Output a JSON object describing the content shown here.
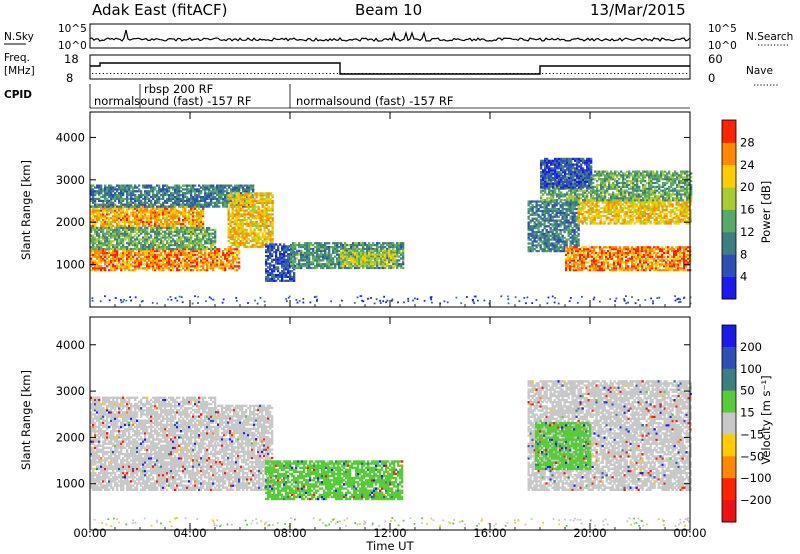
{
  "header": {
    "station": "Adak East (fitACF)",
    "beam": "Beam 10",
    "date": "13/Mar/2015"
  },
  "labels": {
    "nsky": "N.Sky",
    "nsearch": "N.Search",
    "freq": "Freq.",
    "freq_unit": "[MHz]",
    "nave": "Nave",
    "cpid": "CPID",
    "y_main": "Slant Range [km]",
    "x_main": "Time UT",
    "power_cb": "Power [dB]",
    "velocity_cb": "Velocity [m s⁻¹]"
  },
  "noise_panel": {
    "left_ticks": [
      "10^5",
      "10^0"
    ],
    "right_ticks": [
      "10^5",
      "10^0"
    ]
  },
  "freq_panel": {
    "left_ticks": [
      "18",
      "8"
    ],
    "right_ticks": [
      "60",
      "0"
    ]
  },
  "cpid_panel": {
    "segments": [
      {
        "start": 0,
        "end": 2,
        "label": "normalsound (fast) -157 RF"
      },
      {
        "start": 2,
        "end": 8,
        "label": "rbsp 200 RF"
      },
      {
        "start": 8,
        "end": 24,
        "label": "normalsound (fast) -157 RF"
      }
    ]
  },
  "chart_data": [
    {
      "type": "heatmap",
      "name": "Power",
      "x_unit": "hours UT",
      "xlim": [
        0,
        24
      ],
      "ylim": [
        0,
        4600
      ],
      "x_ticks": [
        0,
        4,
        8,
        12,
        16,
        20,
        24
      ],
      "x_tick_labels": [
        "00:00",
        "04:00",
        "08:00",
        "12:00",
        "16:00",
        "20:00",
        "00:00"
      ],
      "y_ticks": [
        1000,
        2000,
        3000,
        4000
      ],
      "y_tick_labels": [
        "1000",
        "2000",
        "3000",
        "4000"
      ],
      "colorbar": {
        "label": "Power [dB]",
        "range": [
          0,
          32
        ],
        "ticks": [
          4,
          8,
          12,
          16,
          20,
          24,
          28
        ],
        "colors": [
          "#1a1aee",
          "#2f4fb8",
          "#3d7f7f",
          "#58a868",
          "#a8cc30",
          "#ffcc00",
          "#ff8800",
          "#ff2200"
        ]
      },
      "regions": [
        {
          "t0": 0,
          "t1": 6,
          "r0": 850,
          "r1": 1350,
          "dB": 26
        },
        {
          "t0": 0,
          "t1": 4.5,
          "r0": 1850,
          "r1": 2350,
          "dB": 24
        },
        {
          "t0": 0,
          "t1": 5,
          "r0": 1350,
          "r1": 1850,
          "dB": 14
        },
        {
          "t0": 0,
          "t1": 6.5,
          "r0": 2350,
          "r1": 2850,
          "dB": 10
        },
        {
          "t0": 5.5,
          "t1": 7.3,
          "r0": 1400,
          "r1": 2700,
          "dB": 22
        },
        {
          "t0": 7,
          "t1": 8.2,
          "r0": 600,
          "r1": 1500,
          "dB": 6
        },
        {
          "t0": 8,
          "t1": 12.5,
          "r0": 900,
          "r1": 1500,
          "dB": 12
        },
        {
          "t0": 10,
          "t1": 12.2,
          "r0": 950,
          "r1": 1350,
          "dB": 18
        },
        {
          "t0": 17.5,
          "t1": 19.5,
          "r0": 1300,
          "r1": 2500,
          "dB": 10
        },
        {
          "t0": 19,
          "t1": 24,
          "r0": 850,
          "r1": 1400,
          "dB": 26
        },
        {
          "t0": 19.5,
          "t1": 24,
          "r0": 1950,
          "r1": 2500,
          "dB": 22
        },
        {
          "t0": 18,
          "t1": 24,
          "r0": 2500,
          "r1": 3200,
          "dB": 14
        },
        {
          "t0": 18,
          "t1": 20,
          "r0": 2800,
          "r1": 3500,
          "dB": 6
        }
      ]
    },
    {
      "type": "heatmap",
      "name": "Velocity",
      "x_unit": "hours UT",
      "xlim": [
        0,
        24
      ],
      "ylim": [
        0,
        4600
      ],
      "x_ticks": [
        0,
        4,
        8,
        12,
        16,
        20,
        24
      ],
      "x_tick_labels": [
        "00:00",
        "04:00",
        "08:00",
        "12:00",
        "16:00",
        "20:00",
        "00:00"
      ],
      "y_ticks": [
        1000,
        2000,
        3000,
        4000
      ],
      "y_tick_labels": [
        "1000",
        "2000",
        "3000",
        "4000"
      ],
      "colorbar": {
        "label": "Velocity [m s⁻¹]",
        "ticks": [
          200,
          100,
          50,
          15,
          -15,
          -50,
          -100,
          -200
        ],
        "colors": [
          "#1a1aee",
          "#2f4fb8",
          "#3d7f7f",
          "#58cc38",
          "#c8c8c8",
          "#ffcc00",
          "#ff8800",
          "#ff2200",
          "#ee1111"
        ]
      },
      "regions": [
        {
          "t0": 0,
          "t1": 7.3,
          "r0": 850,
          "r1": 1350,
          "v": 0
        },
        {
          "t0": 0,
          "t1": 5,
          "r0": 1350,
          "r1": 2850,
          "v": 0
        },
        {
          "t0": 5,
          "t1": 7.3,
          "r0": 1400,
          "r1": 2700,
          "v": 0
        },
        {
          "t0": 7,
          "t1": 12.5,
          "r0": 650,
          "r1": 1500,
          "v": 30
        },
        {
          "t0": 17.5,
          "t1": 24,
          "r0": 850,
          "r1": 3200,
          "v": 0
        },
        {
          "t0": 17.8,
          "t1": 20,
          "r0": 1300,
          "r1": 2300,
          "v": 30
        }
      ]
    }
  ]
}
